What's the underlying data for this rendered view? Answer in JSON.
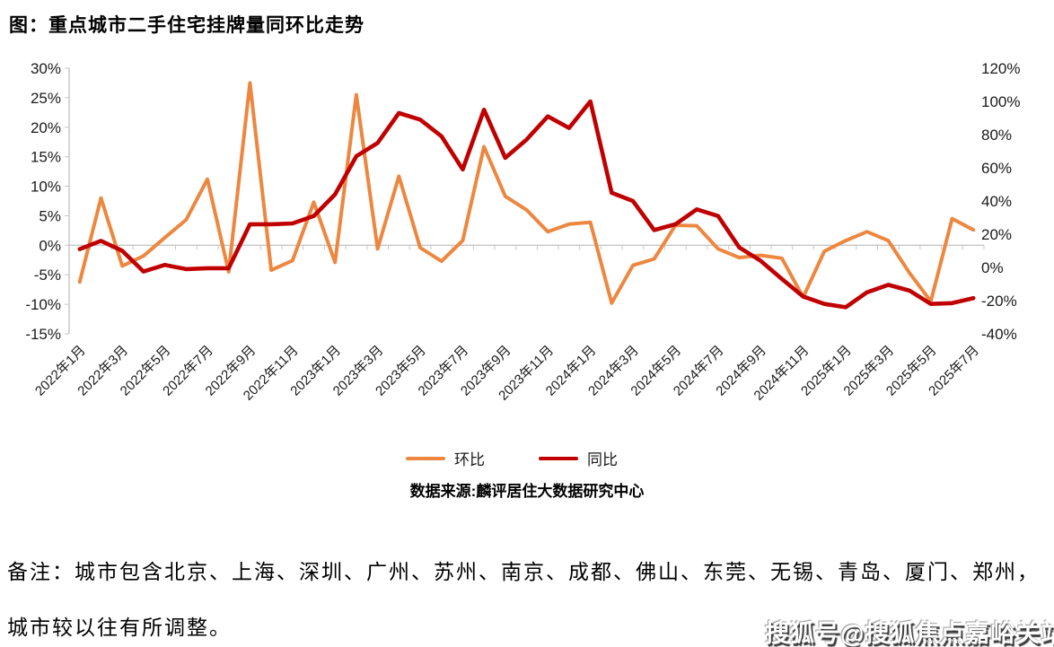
{
  "title": "图：重点城市二手住宅挂牌量同环比走势",
  "source": "数据来源:麟评居住大数据研究中心",
  "note_line1": "备注：城市包含北京、上海、深圳、广州、苏州、南京、成都、佛山、东莞、无锡、青岛、厦门、郑州，",
  "note_line2": "城市较以往有所调整。",
  "watermark": "搜狐号@搜狐焦点嘉峪关站",
  "colors": {
    "mom_line": "#ED8740",
    "yoy_line": "#C00000",
    "axis": "#C6C6C6",
    "label_text": "#1a1a1a"
  },
  "chart_data": {
    "type": "line",
    "title": "重点城市二手住宅挂牌量同环比走势",
    "x_labels": [
      "2022年1月",
      "2022年2月",
      "2022年3月",
      "2022年4月",
      "2022年5月",
      "2022年6月",
      "2022年7月",
      "2022年8月",
      "2022年9月",
      "2022年10月",
      "2022年11月",
      "2022年12月",
      "2023年1月",
      "2023年2月",
      "2023年3月",
      "2023年4月",
      "2023年5月",
      "2023年6月",
      "2023年7月",
      "2023年8月",
      "2023年9月",
      "2023年10月",
      "2023年11月",
      "2023年12月",
      "2024年1月",
      "2024年2月",
      "2024年3月",
      "2024年4月",
      "2024年5月",
      "2024年6月",
      "2024年7月",
      "2024年8月",
      "2024年9月",
      "2024年10月",
      "2024年11月",
      "2024年12月",
      "2025年1月",
      "2025年2月",
      "2025年3月",
      "2025年4月",
      "2025年5月",
      "2025年6月",
      "2025年7月"
    ],
    "x_tick_labels_shown": [
      "2022年1月",
      "2022年3月",
      "2022年5月",
      "2022年7月",
      "2022年9月",
      "2022年11月",
      "2023年1月",
      "2023年3月",
      "2023年5月",
      "2023年7月",
      "2023年9月",
      "2023年11月",
      "2024年1月",
      "2024年3月",
      "2024年5月",
      "2024年7月",
      "2024年9月",
      "2024年11月",
      "2025年1月",
      "2025年3月",
      "2025年5月",
      "2025年7月"
    ],
    "series": [
      {
        "name": "环比",
        "axis": "left",
        "color": "#ED8740",
        "values": [
          -6.2,
          8.0,
          -3.5,
          -1.8,
          1.3,
          4.3,
          11.2,
          -4.5,
          27.5,
          -4.2,
          -2.6,
          7.3,
          -2.9,
          25.5,
          -0.6,
          11.7,
          -0.4,
          -2.7,
          0.8,
          16.7,
          8.3,
          6.0,
          2.3,
          3.6,
          3.9,
          -9.8,
          -3.4,
          -2.3,
          3.4,
          3.3,
          -0.6,
          -2.1,
          -1.7,
          -2.2,
          -8.8,
          -1.0,
          0.8,
          2.3,
          0.8,
          -4.7,
          -9.5,
          4.5,
          2.6
        ]
      },
      {
        "name": "同比",
        "axis": "right",
        "color": "#C00000",
        "values": [
          11,
          16,
          10,
          -2.5,
          1.5,
          -1,
          -0.5,
          -0.5,
          26,
          26,
          26.5,
          31,
          44,
          67,
          75,
          93,
          89,
          79,
          59,
          95,
          66,
          77,
          91,
          84,
          100,
          45,
          40,
          22.5,
          26,
          35,
          31,
          12,
          4,
          -7,
          -17.5,
          -22,
          -24,
          -15,
          -10.5,
          -14,
          -22,
          -21.5,
          -18.5
        ]
      }
    ],
    "left_axis": {
      "min": -15,
      "max": 30,
      "step": 5,
      "suffix": "%"
    },
    "right_axis": {
      "min": -40,
      "max": 120,
      "step": 20,
      "suffix": "%"
    },
    "grid": "zero-line-only",
    "legend_position": "bottom-center"
  }
}
